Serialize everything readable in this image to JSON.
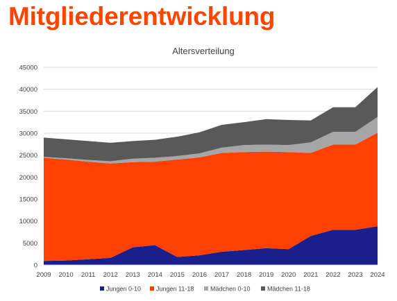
{
  "page": {
    "title": "Mitgliederentwicklung"
  },
  "chart_data": {
    "type": "area",
    "stacked": true,
    "title": "Altersverteilung",
    "xlabel": "",
    "ylabel": "",
    "x": [
      "2009",
      "2010",
      "2011",
      "2012",
      "2013",
      "2014",
      "2015",
      "2016",
      "2017",
      "2018",
      "2019",
      "2020",
      "2021",
      "2022",
      "2023",
      "2024"
    ],
    "ylim": [
      0,
      45000
    ],
    "yticks": [
      0,
      5000,
      10000,
      15000,
      20000,
      25000,
      30000,
      35000,
      40000,
      45000
    ],
    "grid": true,
    "legend_position": "bottom",
    "series": [
      {
        "name": "Jungen 0-10",
        "color": "#1a1f8c",
        "values": [
          900,
          1000,
          1300,
          1600,
          4000,
          4500,
          1800,
          2200,
          3000,
          3400,
          3800,
          3600,
          6600,
          8000,
          8000,
          8800
        ]
      },
      {
        "name": "Jungen 11-18",
        "color": "#ff4000",
        "values": [
          23500,
          23000,
          22200,
          21500,
          19400,
          19000,
          22200,
          22300,
          22500,
          22300,
          22000,
          22100,
          18900,
          19400,
          19400,
          21300
        ]
      },
      {
        "name": "Mädchen 0-10",
        "color": "#a6a6a6",
        "values": [
          200,
          300,
          400,
          500,
          800,
          900,
          800,
          900,
          1200,
          1600,
          1600,
          1600,
          2400,
          2900,
          2900,
          3600
        ]
      },
      {
        "name": "Mädchen 11-18",
        "color": "#595959",
        "values": [
          4400,
          4300,
          4300,
          4200,
          4000,
          4100,
          4400,
          4800,
          5200,
          5200,
          5800,
          5700,
          5000,
          5600,
          5600,
          6800
        ]
      }
    ]
  }
}
